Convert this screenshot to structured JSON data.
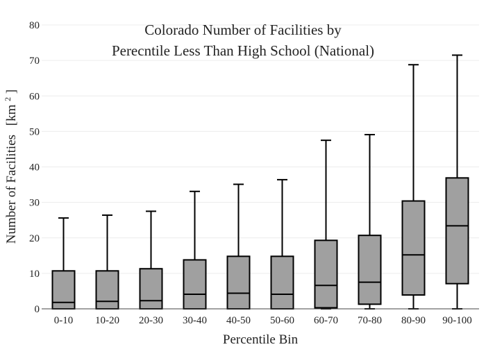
{
  "chart_data": {
    "type": "box",
    "title_lines": [
      "Colorado Number of Facilities by",
      "Perecntile Less Than High School (National)"
    ],
    "xlabel": "Percentile Bin",
    "ylabel": "Number of Facilities",
    "ylabel_unit_base": "[km",
    "ylabel_unit_sup": "2",
    "ylabel_unit_close": "]",
    "ylim": [
      0,
      80
    ],
    "yticks": [
      0,
      10,
      20,
      30,
      40,
      50,
      60,
      70,
      80
    ],
    "ytick_labels": [
      "0",
      "10",
      "20",
      "30",
      "40",
      "50",
      "60",
      "70",
      "80"
    ],
    "grid": true,
    "colors": {
      "box_fill": "#a0a0a0",
      "stroke": "#000000",
      "grid": "#ececec",
      "axis": "#444444"
    },
    "categories": [
      "0-10",
      "10-20",
      "20-30",
      "30-40",
      "40-50",
      "50-60",
      "60-70",
      "70-80",
      "80-90",
      "90-100"
    ],
    "boxes": [
      {
        "min": 0,
        "q1": 0,
        "median": 1.8,
        "q3": 10.7,
        "max": 25.6
      },
      {
        "min": 0,
        "q1": 0,
        "median": 2.1,
        "q3": 10.7,
        "max": 26.4
      },
      {
        "min": 0,
        "q1": 0,
        "median": 2.3,
        "q3": 11.3,
        "max": 27.5
      },
      {
        "min": 0,
        "q1": 0,
        "median": 4.1,
        "q3": 13.8,
        "max": 33.1
      },
      {
        "min": 0,
        "q1": 0,
        "median": 4.4,
        "q3": 14.8,
        "max": 35.1
      },
      {
        "min": 0,
        "q1": 0,
        "median": 4.1,
        "q3": 14.8,
        "max": 36.4
      },
      {
        "min": 0,
        "q1": 0.3,
        "median": 6.6,
        "q3": 19.3,
        "max": 47.5
      },
      {
        "min": 0,
        "q1": 1.3,
        "median": 7.5,
        "q3": 20.7,
        "max": 49.1
      },
      {
        "min": 0,
        "q1": 3.9,
        "median": 15.2,
        "q3": 30.4,
        "max": 68.8
      },
      {
        "min": 0,
        "q1": 7.1,
        "median": 23.4,
        "q3": 36.9,
        "max": 71.5
      }
    ]
  }
}
